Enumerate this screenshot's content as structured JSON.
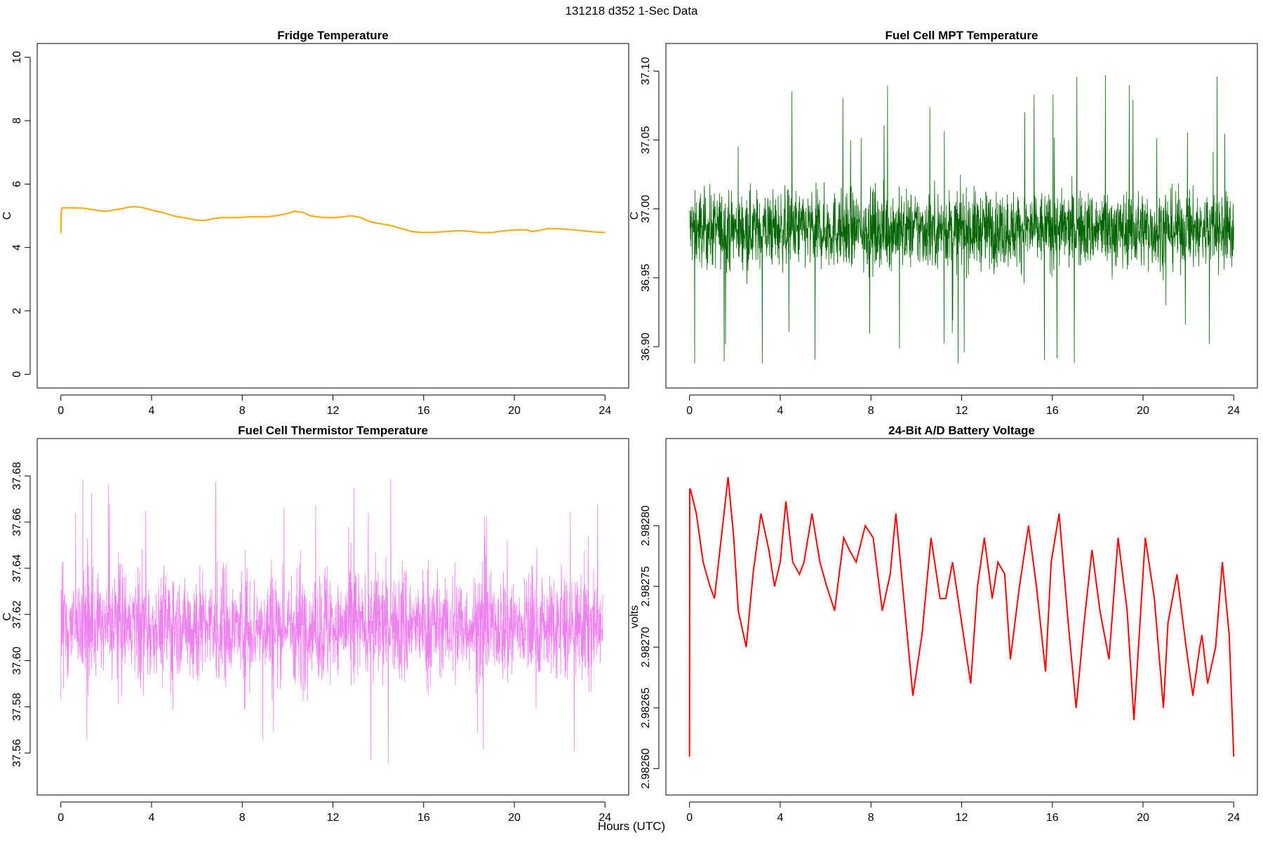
{
  "page": {
    "title": "131218   d352   1-Sec Data",
    "xlabel": "Hours (UTC)"
  },
  "chart_data": [
    {
      "id": "fridge",
      "type": "line",
      "title": "Fridge Temperature",
      "ylabel": "C",
      "xlim": [
        0,
        24
      ],
      "ylim": [
        0,
        10
      ],
      "xticks": [
        0,
        4,
        8,
        12,
        16,
        20,
        24
      ],
      "xtick_labels": [
        "0",
        "4",
        "8",
        "12",
        "16",
        "20",
        "24"
      ],
      "yticks": [
        0,
        2,
        4,
        6,
        8,
        10
      ],
      "ytick_labels": [
        "0",
        "2",
        "4",
        "6",
        "8",
        "10"
      ],
      "color": "#FFA500",
      "series": [
        {
          "x": [
            0,
            0.02,
            0.05,
            0.5,
            1.0,
            1.5,
            2.0,
            2.5,
            3.0,
            3.3,
            3.6,
            4.0,
            4.5,
            5.0,
            5.5,
            6.0,
            6.3,
            6.7,
            7.0,
            7.5,
            8.0,
            8.5,
            9.0,
            9.5,
            10.0,
            10.3,
            10.7,
            11.0,
            11.5,
            12.0,
            12.5,
            12.8,
            13.2,
            13.6,
            14.0,
            14.5,
            15.0,
            15.5,
            16.0,
            16.5,
            17.0,
            17.5,
            18.0,
            18.5,
            19.0,
            19.5,
            20.0,
            20.5,
            20.8,
            21.2,
            21.5,
            22.0,
            22.5,
            23.0,
            23.5,
            24.0
          ],
          "y": [
            4.45,
            5.1,
            5.25,
            5.25,
            5.24,
            5.18,
            5.14,
            5.2,
            5.27,
            5.29,
            5.26,
            5.18,
            5.1,
            4.99,
            4.93,
            4.86,
            4.85,
            4.9,
            4.94,
            4.94,
            4.95,
            4.97,
            4.96,
            5.0,
            5.07,
            5.14,
            5.1,
            5.0,
            4.95,
            4.94,
            4.97,
            5.0,
            4.95,
            4.82,
            4.76,
            4.7,
            4.6,
            4.5,
            4.47,
            4.48,
            4.5,
            4.53,
            4.51,
            4.47,
            4.47,
            4.52,
            4.55,
            4.56,
            4.5,
            4.55,
            4.6,
            4.59,
            4.56,
            4.53,
            4.49,
            4.47
          ]
        }
      ]
    },
    {
      "id": "mpt",
      "type": "line",
      "title": "Fuel Cell MPT Temperature",
      "ylabel": "C",
      "xlim": [
        0,
        24
      ],
      "ylim": [
        36.88,
        37.11
      ],
      "xticks": [
        0,
        4,
        8,
        12,
        16,
        20,
        24
      ],
      "xtick_labels": [
        "0",
        "4",
        "8",
        "12",
        "16",
        "20",
        "24"
      ],
      "yticks": [
        36.9,
        36.95,
        37.0,
        37.05,
        37.1
      ],
      "ytick_labels": [
        "36.90",
        "36.95",
        "37.00",
        "37.05",
        "37.10"
      ],
      "color": "#006400",
      "noise": {
        "center": 36.985,
        "core_low": 36.94,
        "core_high": 37.03,
        "min": 36.888,
        "max": 37.105
      }
    },
    {
      "id": "thermistor",
      "type": "line",
      "title": "Fuel Cell Thermistor Temperature",
      "ylabel": "C",
      "xlim": [
        0,
        24
      ],
      "ylim": [
        37.548,
        37.69
      ],
      "xticks": [
        0,
        4,
        8,
        12,
        16,
        20,
        24
      ],
      "xtick_labels": [
        "0",
        "4",
        "8",
        "12",
        "16",
        "20",
        "24"
      ],
      "yticks": [
        37.56,
        37.58,
        37.6,
        37.62,
        37.64,
        37.66,
        37.68
      ],
      "ytick_labels": [
        "37.56",
        "37.58",
        "37.60",
        "37.62",
        "37.64",
        "37.66",
        "37.68"
      ],
      "color": "#EE82EE",
      "noise": {
        "center": 37.615,
        "min": 37.553,
        "max": 37.686
      }
    },
    {
      "id": "battery",
      "type": "line",
      "title": "24-Bit A/D Battery Voltage",
      "ylabel": "volts",
      "xlim": [
        0,
        24
      ],
      "ylim": [
        2.98259,
        2.98286
      ],
      "xticks": [
        0,
        4,
        8,
        12,
        16,
        20,
        24
      ],
      "xtick_labels": [
        "0",
        "4",
        "8",
        "12",
        "16",
        "20",
        "24"
      ],
      "yticks": [
        2.9826,
        2.98265,
        2.9827,
        2.98275,
        2.9828
      ],
      "ytick_labels": [
        "2.98260",
        "2.98265",
        "2.98270",
        "2.98275",
        "2.98280"
      ],
      "color": "#FF0000",
      "series": [
        {
          "x": [
            0,
            0.01,
            0.04,
            0.3,
            0.6,
            0.9,
            1.1,
            1.4,
            1.7,
            1.95,
            2.15,
            2.5,
            2.8,
            3.15,
            3.5,
            3.75,
            4.0,
            4.25,
            4.55,
            4.85,
            5.05,
            5.4,
            5.75,
            6.05,
            6.4,
            6.8,
            7.05,
            7.35,
            7.75,
            8.1,
            8.5,
            8.85,
            9.1,
            9.45,
            9.85,
            10.25,
            10.65,
            11.05,
            11.3,
            11.6,
            12.0,
            12.4,
            12.7,
            13.0,
            13.35,
            13.6,
            13.9,
            14.15,
            14.55,
            14.95,
            15.3,
            15.7,
            15.95,
            16.3,
            16.7,
            17.05,
            17.4,
            17.75,
            18.1,
            18.5,
            18.9,
            19.3,
            19.6,
            20.1,
            20.5,
            20.9,
            21.1,
            21.5,
            21.9,
            22.2,
            22.5,
            22.6,
            22.85,
            23.2,
            23.5,
            23.8,
            24.0
          ],
          "y": [
            2.98261,
            2.98283,
            2.98283,
            2.98281,
            2.98277,
            2.98275,
            2.98274,
            2.98279,
            2.98284,
            2.98279,
            2.98273,
            2.9827,
            2.98276,
            2.98281,
            2.98278,
            2.98275,
            2.98277,
            2.98282,
            2.98277,
            2.98276,
            2.98277,
            2.98281,
            2.98277,
            2.98275,
            2.98273,
            2.98279,
            2.98278,
            2.98277,
            2.9828,
            2.98279,
            2.98273,
            2.98276,
            2.98281,
            2.98274,
            2.98266,
            2.98271,
            2.98279,
            2.98274,
            2.98274,
            2.98277,
            2.98272,
            2.98267,
            2.98275,
            2.98279,
            2.98274,
            2.98277,
            2.98276,
            2.98269,
            2.98275,
            2.9828,
            2.98275,
            2.98268,
            2.98277,
            2.98281,
            2.98272,
            2.98265,
            2.98272,
            2.98278,
            2.98273,
            2.98269,
            2.98279,
            2.98273,
            2.98264,
            2.98279,
            2.98274,
            2.98265,
            2.98272,
            2.98276,
            2.9827,
            2.98266,
            2.9827,
            2.98271,
            2.98267,
            2.9827,
            2.98277,
            2.98271,
            2.98261
          ]
        }
      ]
    }
  ]
}
